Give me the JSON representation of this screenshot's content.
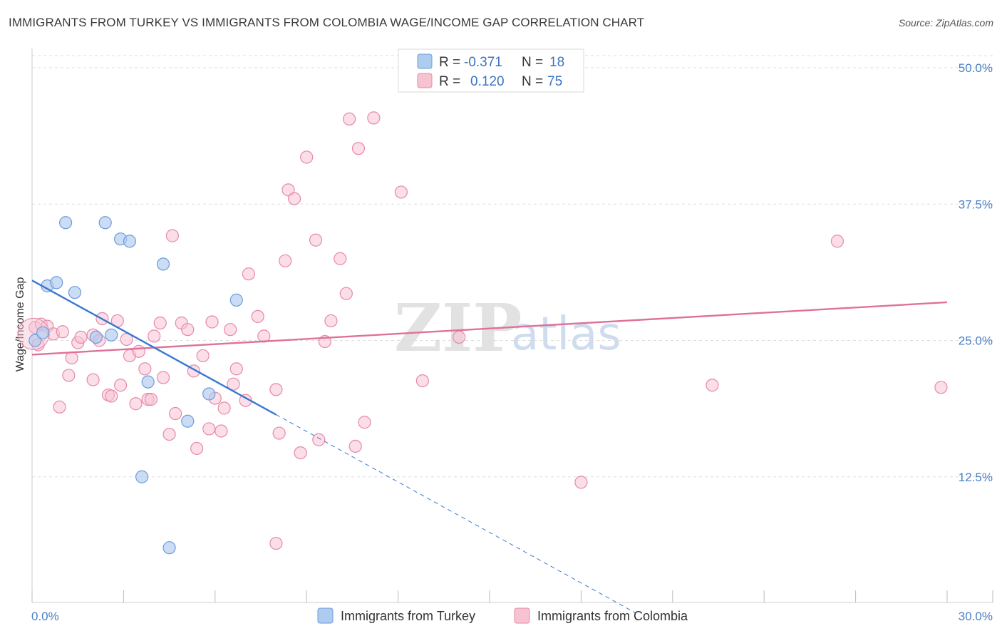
{
  "header": {
    "title": "IMMIGRANTS FROM TURKEY VS IMMIGRANTS FROM COLOMBIA WAGE/INCOME GAP CORRELATION CHART",
    "source": "Source: ZipAtlas.com"
  },
  "watermark": {
    "zip": "ZIP",
    "atlas": "atlas"
  },
  "legend_top": {
    "rows": [
      {
        "r_label": "R =",
        "r_value": "-0.371",
        "n_label": "N =",
        "n_value": "18"
      },
      {
        "r_label": "R =",
        "r_value": "0.120",
        "n_label": "N =",
        "n_value": "75"
      }
    ]
  },
  "legend_bottom": {
    "items": [
      "Immigrants from Turkey",
      "Immigrants from Colombia"
    ]
  },
  "colors": {
    "turkey_fill": "#aecbf0",
    "turkey_stroke": "#6e9cd8",
    "turkey_line": "#3a78d0",
    "colombia_fill": "#f7c3d3",
    "colombia_stroke": "#e58aa8",
    "colombia_line": "#e0709a",
    "grid": "#dddddd",
    "tick_text": "#4a7fc6"
  },
  "chart_data": {
    "type": "scatter",
    "title": "IMMIGRANTS FROM TURKEY VS IMMIGRANTS FROM COLOMBIA WAGE/INCOME GAP CORRELATION CHART",
    "xlabel": "",
    "ylabel": "Wage/Income Gap",
    "xlim": [
      0,
      30
    ],
    "ylim": [
      0,
      50
    ],
    "x_tick_labels": [
      "0.0%",
      "30.0%"
    ],
    "y_ticks": [
      12.5,
      25.0,
      37.5,
      50.0
    ],
    "y_tick_labels": [
      "12.5%",
      "25.0%",
      "37.5%",
      "50.0%"
    ],
    "grid": "horizontal dashed",
    "series": [
      {
        "name": "Immigrants from Turkey",
        "R": -0.371,
        "N": 18,
        "points": [
          [
            0.1,
            25.0
          ],
          [
            0.5,
            30.0
          ],
          [
            0.8,
            30.3
          ],
          [
            1.1,
            35.8
          ],
          [
            1.4,
            29.4
          ],
          [
            2.4,
            35.8
          ],
          [
            2.1,
            25.3
          ],
          [
            2.6,
            25.5
          ],
          [
            2.9,
            34.3
          ],
          [
            3.2,
            34.1
          ],
          [
            3.6,
            12.5
          ],
          [
            3.8,
            21.2
          ],
          [
            4.3,
            32.0
          ],
          [
            4.5,
            6.0
          ],
          [
            5.1,
            17.6
          ],
          [
            5.8,
            20.1
          ],
          [
            6.7,
            28.7
          ],
          [
            0.35,
            25.7
          ]
        ],
        "trend_solid": [
          [
            0.0,
            30.5
          ],
          [
            8.0,
            18.2
          ]
        ],
        "trend_dashed": [
          [
            8.0,
            18.2
          ],
          [
            19.8,
            0.0
          ]
        ]
      },
      {
        "name": "Immigrants from Colombia",
        "R": 0.12,
        "N": 75,
        "points": [
          [
            0.1,
            26.2
          ],
          [
            0.3,
            26.5
          ],
          [
            0.5,
            26.3
          ],
          [
            0.7,
            25.6
          ],
          [
            0.9,
            18.9
          ],
          [
            1.0,
            25.8
          ],
          [
            1.2,
            21.8
          ],
          [
            1.3,
            23.4
          ],
          [
            1.5,
            24.8
          ],
          [
            1.6,
            25.3
          ],
          [
            2.0,
            25.5
          ],
          [
            2.0,
            21.4
          ],
          [
            2.2,
            25.0
          ],
          [
            2.3,
            27.0
          ],
          [
            2.5,
            20.0
          ],
          [
            2.6,
            19.9
          ],
          [
            2.8,
            26.8
          ],
          [
            2.9,
            20.9
          ],
          [
            3.1,
            25.1
          ],
          [
            3.2,
            23.6
          ],
          [
            3.4,
            19.2
          ],
          [
            3.5,
            24.0
          ],
          [
            3.7,
            22.4
          ],
          [
            3.8,
            19.6
          ],
          [
            3.9,
            19.6
          ],
          [
            4.2,
            26.6
          ],
          [
            4.3,
            21.6
          ],
          [
            4.5,
            16.4
          ],
          [
            4.6,
            34.6
          ],
          [
            4.7,
            18.3
          ],
          [
            4.9,
            26.6
          ],
          [
            5.1,
            26.0
          ],
          [
            5.3,
            22.2
          ],
          [
            5.4,
            15.1
          ],
          [
            5.6,
            23.6
          ],
          [
            5.8,
            16.9
          ],
          [
            5.9,
            26.7
          ],
          [
            6.0,
            19.7
          ],
          [
            6.2,
            16.7
          ],
          [
            6.3,
            18.8
          ],
          [
            6.5,
            26.0
          ],
          [
            6.6,
            21.0
          ],
          [
            6.7,
            22.4
          ],
          [
            7.0,
            19.5
          ],
          [
            7.1,
            31.1
          ],
          [
            7.4,
            27.2
          ],
          [
            7.6,
            25.4
          ],
          [
            8.0,
            20.5
          ],
          [
            8.1,
            16.5
          ],
          [
            8.3,
            32.3
          ],
          [
            8.4,
            38.8
          ],
          [
            8.6,
            38.0
          ],
          [
            8.8,
            14.7
          ],
          [
            9.0,
            41.8
          ],
          [
            9.3,
            34.2
          ],
          [
            9.4,
            15.9
          ],
          [
            9.6,
            24.9
          ],
          [
            9.8,
            26.8
          ],
          [
            10.1,
            32.5
          ],
          [
            10.3,
            29.3
          ],
          [
            10.4,
            45.3
          ],
          [
            10.6,
            15.3
          ],
          [
            10.7,
            42.6
          ],
          [
            10.9,
            17.5
          ],
          [
            11.2,
            45.4
          ],
          [
            12.1,
            38.6
          ],
          [
            12.8,
            21.3
          ],
          [
            14.0,
            25.3
          ],
          [
            18.0,
            12.0
          ],
          [
            22.3,
            20.9
          ],
          [
            26.4,
            34.1
          ],
          [
            29.8,
            20.7
          ],
          [
            8.0,
            6.4
          ],
          [
            4.0,
            25.4
          ],
          [
            0.2,
            24.6
          ]
        ],
        "trend_solid": [
          [
            0.0,
            23.7
          ],
          [
            30.0,
            28.5
          ]
        ]
      }
    ]
  }
}
